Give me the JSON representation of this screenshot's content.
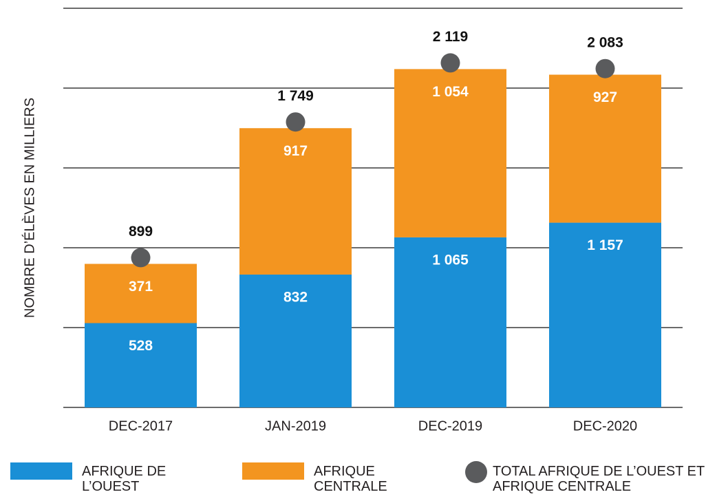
{
  "chart_data": {
    "type": "bar",
    "stacked": true,
    "y_label": "NOMBRE D’ÉLÈVES EN MILLIERS",
    "categories": [
      "DEC-2017",
      "JAN-2019",
      "DEC-2019",
      "DEC-2020"
    ],
    "series": [
      {
        "name": "AFRIQUE DE L’OUEST",
        "color": "#1a8fd6",
        "values": [
          528,
          832,
          1065,
          1157
        ],
        "value_labels": [
          "528",
          "832",
          "1 065",
          "1 157"
        ]
      },
      {
        "name": "AFRIQUE CENTRALE",
        "color": "#f39520",
        "values": [
          371,
          917,
          1054,
          927
        ],
        "value_labels": [
          "371",
          "917",
          "1 054",
          "927"
        ]
      },
      {
        "name": "TOTAL AFRIQUE DE L’OUEST ET AFRIQUE CENTRALE",
        "type": "scatter",
        "color": "#5a5b5d",
        "values": [
          899,
          1749,
          2119,
          2083
        ],
        "value_labels": [
          "899",
          "1 749",
          "2 119",
          "2 083"
        ]
      }
    ],
    "ylim": [
      0,
      2500
    ],
    "yticks": [
      0,
      500,
      1000,
      1500,
      2000,
      2500
    ],
    "grid": true
  }
}
